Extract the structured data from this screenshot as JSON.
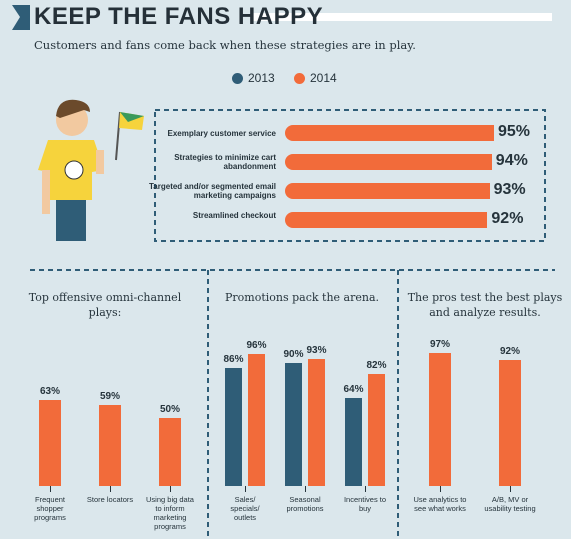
{
  "header": {
    "title": "KEEP THE FANS HAPPY",
    "subtitle": "Customers and fans come back when these strategies are in play."
  },
  "chart_data": [
    {
      "type": "hbar",
      "categories": [
        "Exemplary customer service",
        "Strategies to minimize cart abandonment",
        "Targeted and/or segmented email marketing campaigns",
        "Streamlined checkout"
      ],
      "values": [
        95,
        94,
        93,
        92
      ],
      "value_labels": [
        "95%",
        "94%",
        "93%",
        "92%"
      ],
      "color": "#f26b3a"
    },
    {
      "type": "bar",
      "title": "Top offensive omni-channel plays:",
      "categories": [
        "Frequent shopper programs",
        "Store locators",
        "Using big data to inform marketing programs"
      ],
      "values": [
        63,
        59,
        50
      ],
      "value_labels": [
        "63%",
        "59%",
        "50%"
      ],
      "color": "#f26b3a"
    },
    {
      "type": "groupbar",
      "title": "Promotions pack the arena.",
      "categories": [
        "Sales/ specials/ outlets",
        "Seasonal promotions",
        "Incentives to buy"
      ],
      "series": [
        {
          "name": "2013",
          "color": "#2f5d77",
          "values": [
            86,
            90,
            64
          ],
          "value_labels": [
            "86%",
            "90%",
            "64%"
          ]
        },
        {
          "name": "2014",
          "color": "#f26b3a",
          "values": [
            96,
            93,
            82
          ],
          "value_labels": [
            "96%",
            "93%",
            "82%"
          ]
        }
      ]
    },
    {
      "type": "bar",
      "title": "The pros test the best plays and analyze results.",
      "categories": [
        "Use analytics to see what works",
        "A/B, MV or usability testing"
      ],
      "values": [
        97,
        92
      ],
      "value_labels": [
        "97%",
        "92%"
      ],
      "color": "#f26b3a"
    }
  ]
}
